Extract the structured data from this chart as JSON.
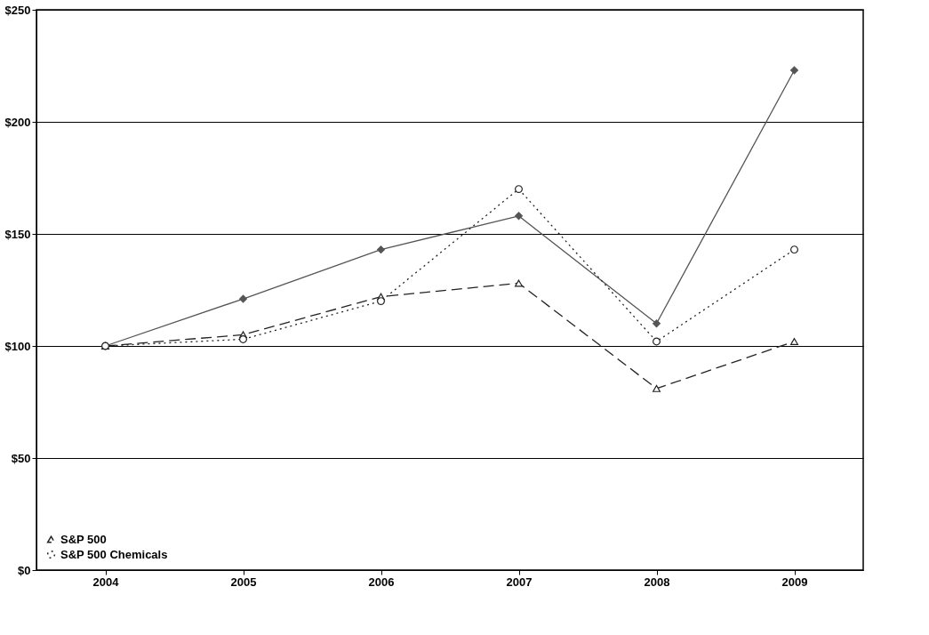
{
  "chart_data": {
    "type": "line",
    "categories": [
      "2004",
      "2005",
      "2006",
      "2007",
      "2008",
      "2009"
    ],
    "series": [
      {
        "color": "#555555",
        "marker": "diamond",
        "line_style": "solid",
        "values": [
          100,
          121,
          143,
          158,
          110,
          223
        ]
      },
      {
        "name": "S&P 500",
        "color": "#222222",
        "marker": "triangle",
        "line_style": "dashed",
        "values": [
          100,
          105,
          122,
          128,
          81,
          102
        ]
      },
      {
        "name": "S&P 500 Chemicals",
        "color": "#222222",
        "marker": "circle",
        "line_style": "dotted",
        "values": [
          100,
          103,
          120,
          170,
          102,
          143
        ]
      }
    ],
    "ylim": [
      0,
      250
    ],
    "yticks": [
      {
        "value": 0,
        "label": "$0"
      },
      {
        "value": 50,
        "label": "$50"
      },
      {
        "value": 100,
        "label": "$100"
      },
      {
        "value": 150,
        "label": "$150"
      },
      {
        "value": 200,
        "label": "$200"
      },
      {
        "value": 250,
        "label": "$250"
      }
    ],
    "grid": "y",
    "legend": "bottom left"
  }
}
